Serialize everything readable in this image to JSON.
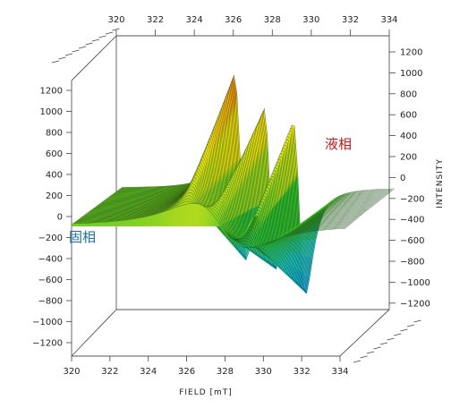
{
  "chart_data": {
    "type": "surface3d",
    "x_axis": {
      "label": "FIELD [mT]",
      "range": [
        320,
        334
      ],
      "ticks": [
        "320",
        "322",
        "324",
        "326",
        "328",
        "330",
        "332",
        "334"
      ]
    },
    "z_axis": {
      "label": "INTENSITY",
      "range": [
        -1300,
        1300
      ],
      "ticks_right": [
        "1200",
        "1000",
        "800",
        "600",
        "400",
        "200",
        "0",
        "−200",
        "−400",
        "−600",
        "−800",
        "−1000",
        "−1200"
      ],
      "ticks_left": [
        "1200",
        "1000",
        "800",
        "600",
        "400",
        "200",
        "0",
        "−200",
        "−400",
        "−600",
        "−800",
        "−1000",
        "−1200"
      ]
    },
    "phase_annotations": {
      "liquid": {
        "text": "液相",
        "color": "#c01818"
      },
      "solid": {
        "text": "固相",
        "color": "#1a6fa0"
      }
    },
    "lines": [
      {
        "name": "liquid-phase",
        "peaks": [
          {
            "center": 326.1,
            "width": 0.35,
            "amplitude": 1150
          },
          {
            "center": 327.6,
            "width": 0.35,
            "amplitude": 1100
          },
          {
            "center": 329.1,
            "width": 0.35,
            "amplitude": 1080
          }
        ]
      },
      {
        "name": "solid-phase",
        "peaks": [
          {
            "center": 327.6,
            "width": 1.4,
            "amplitude": 250
          }
        ]
      }
    ],
    "colormap": [
      "#2030d0",
      "#10a0e0",
      "#20c8c8",
      "#30c030",
      "#a8d820",
      "#f0e010",
      "#f0a010",
      "#d82810"
    ]
  }
}
